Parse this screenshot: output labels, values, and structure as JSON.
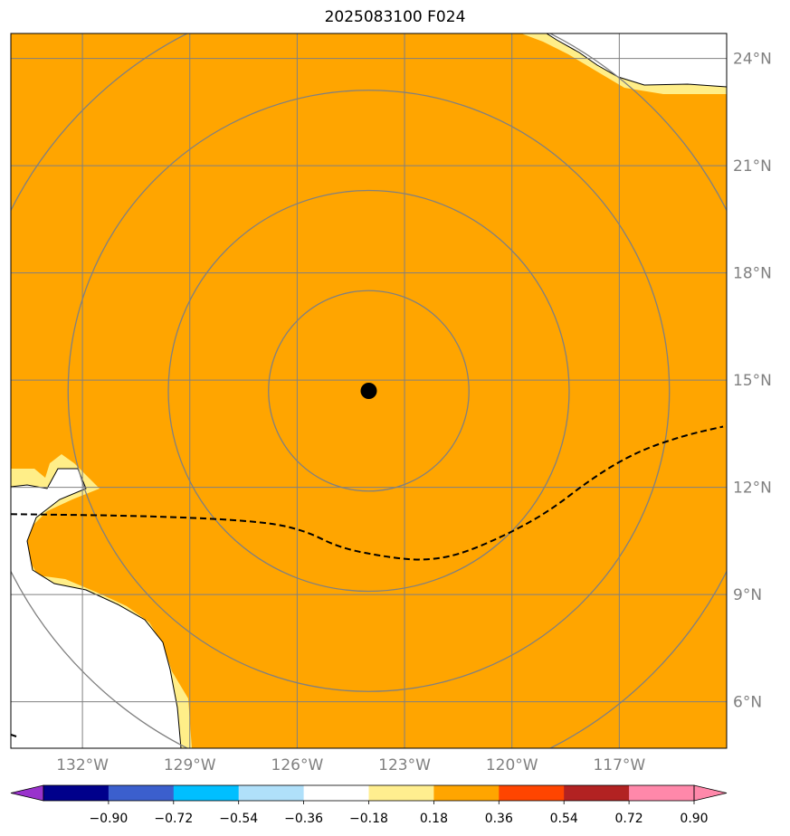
{
  "title": "2025083100 F024",
  "map": {
    "lon_range": [
      -134,
      -114
    ],
    "lat_range": [
      4.7,
      24.7
    ],
    "center": {
      "lon": -124,
      "lat": 14.7
    },
    "center_marker": "storm-center-dot",
    "range_ring_radii_deg": [
      2.8,
      5.6,
      8.4,
      11.2
    ],
    "fill_color": "#ffa500",
    "edge_color": "#ffee88",
    "land_color": "#ffffff",
    "grid_color": "#808080",
    "lon_ticks": [
      {
        "value": -132,
        "label": "132°W"
      },
      {
        "value": -129,
        "label": "129°W"
      },
      {
        "value": -126,
        "label": "126°W"
      },
      {
        "value": -123,
        "label": "123°W"
      },
      {
        "value": -120,
        "label": "120°W"
      },
      {
        "value": -117,
        "label": "117°W"
      }
    ],
    "lat_ticks": [
      {
        "value": 24,
        "label": "24°N"
      },
      {
        "value": 21,
        "label": "21°N"
      },
      {
        "value": 18,
        "label": "18°N"
      },
      {
        "value": 15,
        "label": "15°N"
      },
      {
        "value": 12,
        "label": "12°N"
      },
      {
        "value": 9,
        "label": "9°N"
      },
      {
        "value": 6,
        "label": "6°N"
      }
    ],
    "dashed_track": [
      [
        -134,
        11.25
      ],
      [
        -130,
        11.2
      ],
      [
        -127,
        11.05
      ],
      [
        -125.8,
        10.8
      ],
      [
        -124.8,
        10.3
      ],
      [
        -123.5,
        10.05
      ],
      [
        -122.5,
        9.95
      ],
      [
        -121.5,
        10.1
      ],
      [
        -120.2,
        10.65
      ],
      [
        -119,
        11.3
      ],
      [
        -117.7,
        12.3
      ],
      [
        -116.5,
        13.0
      ],
      [
        -115.2,
        13.45
      ],
      [
        -114.1,
        13.7
      ]
    ]
  },
  "colorbar": {
    "colors": [
      "#9932cc",
      "#00008b",
      "#3b5fcd",
      "#00bfff",
      "#b0e0fa",
      "#ffffff",
      "#ffee8f",
      "#ffa500",
      "#ff4500",
      "#b22222",
      "#ff88aa",
      "#ff88aa"
    ],
    "labels": [
      "−0.90",
      "−0.72",
      "−0.54",
      "−0.36",
      "−0.18",
      "0.18",
      "0.36",
      "0.54",
      "0.72",
      "0.90"
    ]
  }
}
